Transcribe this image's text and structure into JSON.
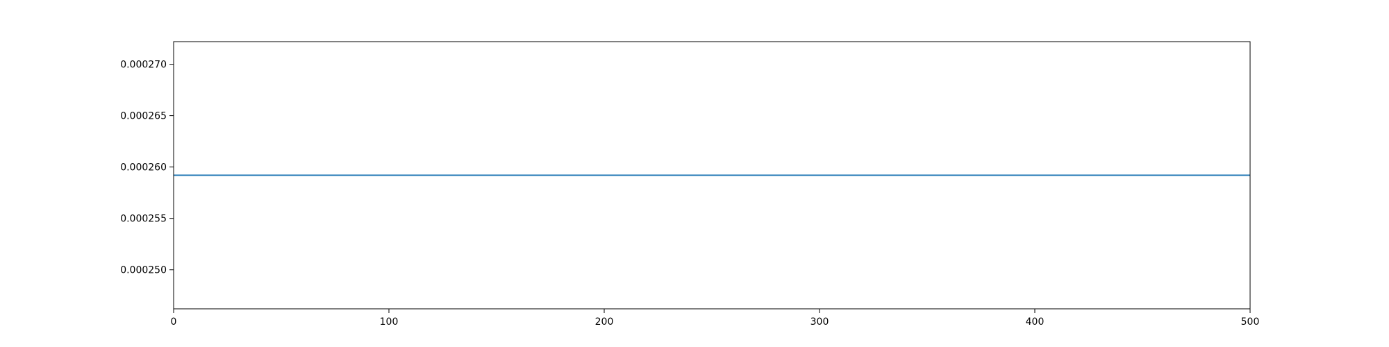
{
  "chart_data": {
    "type": "line",
    "title": "",
    "xlabel": "",
    "ylabel": "",
    "xlim": [
      0,
      500
    ],
    "ylim": [
      0.0002462,
      0.0002722
    ],
    "x_ticks": [
      0,
      100,
      200,
      300,
      400,
      500
    ],
    "x_tick_labels": [
      "0",
      "100",
      "200",
      "300",
      "400",
      "500"
    ],
    "y_ticks": [
      0.00025,
      0.000255,
      0.00026,
      0.000265,
      0.00027
    ],
    "y_tick_labels": [
      "0.000250",
      "0.000255",
      "0.000260",
      "0.000265",
      "0.000270"
    ],
    "grid": false,
    "legend": "none",
    "series": [
      {
        "color": "#1f77b4",
        "points": [
          [
            0,
            0.0002592
          ],
          [
            500,
            0.0002592
          ]
        ]
      }
    ]
  }
}
